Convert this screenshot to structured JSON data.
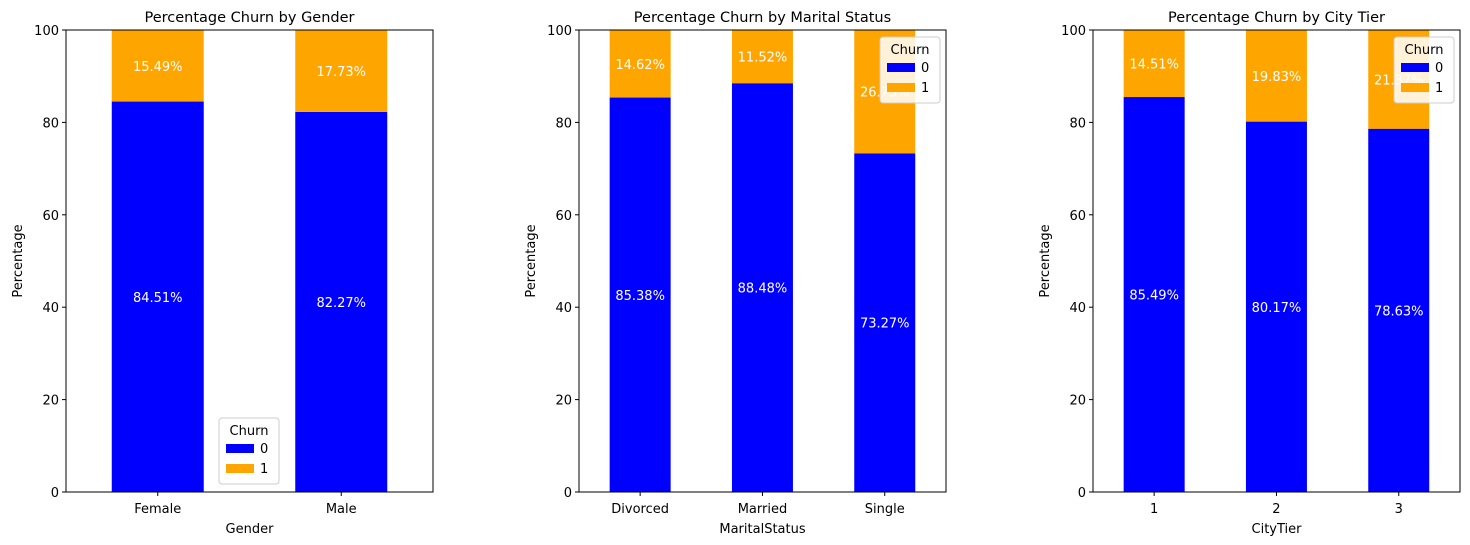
{
  "colors": {
    "churn_0": "#0000ff",
    "churn_1": "#ffa500",
    "bar_label": "#ffffff",
    "axis": "#000000"
  },
  "chart_data": [
    {
      "type": "bar",
      "stacked": true,
      "title": "Percentage Churn by Gender",
      "xlabel": "Gender",
      "ylabel": "Percentage",
      "ylim": [
        0,
        100
      ],
      "yticks": [
        "0",
        "20",
        "40",
        "60",
        "80",
        "100"
      ],
      "categories": [
        "Female",
        "Male"
      ],
      "series": [
        {
          "name": "0",
          "values": [
            84.51,
            82.27
          ],
          "labels": [
            "84.51%",
            "82.27%"
          ]
        },
        {
          "name": "1",
          "values": [
            15.49,
            17.73
          ],
          "labels": [
            "15.49%",
            "17.73%"
          ]
        }
      ],
      "legend": {
        "title": "Churn",
        "entries": [
          "0",
          "1"
        ],
        "placement": "lower-center"
      }
    },
    {
      "type": "bar",
      "stacked": true,
      "title": "Percentage Churn by Marital Status",
      "xlabel": "MaritalStatus",
      "ylabel": "Percentage",
      "ylim": [
        0,
        100
      ],
      "yticks": [
        "0",
        "20",
        "40",
        "60",
        "80",
        "100"
      ],
      "categories": [
        "Divorced",
        "Married",
        "Single"
      ],
      "series": [
        {
          "name": "0",
          "values": [
            85.38,
            88.48,
            73.27
          ],
          "labels": [
            "85.38%",
            "88.48%",
            "73.27%"
          ]
        },
        {
          "name": "1",
          "values": [
            14.62,
            11.52,
            26.73
          ],
          "labels": [
            "14.62%",
            "11.52%",
            "26.73%"
          ]
        }
      ],
      "legend": {
        "title": "Churn",
        "entries": [
          "0",
          "1"
        ],
        "placement": "upper-right"
      }
    },
    {
      "type": "bar",
      "stacked": true,
      "title": "Percentage Churn by City Tier",
      "xlabel": "CityTier",
      "ylabel": "Percentage",
      "ylim": [
        0,
        100
      ],
      "yticks": [
        "0",
        "20",
        "40",
        "60",
        "80",
        "100"
      ],
      "categories": [
        "1",
        "2",
        "3"
      ],
      "series": [
        {
          "name": "0",
          "values": [
            85.49,
            80.17,
            78.63
          ],
          "labels": [
            "85.49%",
            "80.17%",
            "78.63%"
          ]
        },
        {
          "name": "1",
          "values": [
            14.51,
            19.83,
            21.37
          ],
          "labels": [
            "14.51%",
            "19.83%",
            "21.37%"
          ]
        }
      ],
      "legend": {
        "title": "Churn",
        "entries": [
          "0",
          "1"
        ],
        "placement": "upper-right"
      }
    }
  ]
}
